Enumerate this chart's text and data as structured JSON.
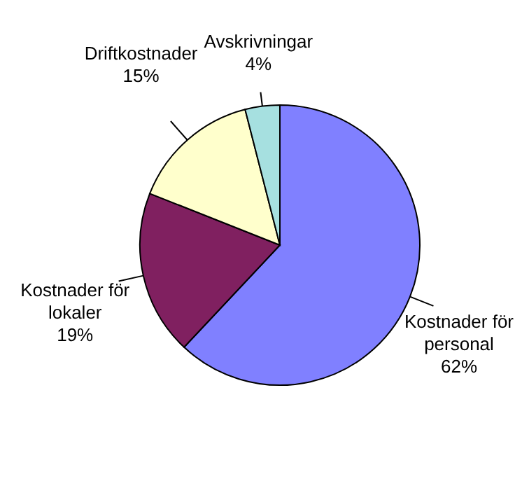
{
  "chart_data": {
    "type": "pie",
    "categories": [
      "Kostnader för personal",
      "Kostnader för lokaler",
      "Driftkostnader",
      "Avskrivningar"
    ],
    "values": [
      62,
      19,
      15,
      4
    ],
    "value_labels": [
      "62%",
      "19%",
      "15%",
      "4%"
    ],
    "colors": [
      "#8080ff",
      "#802060",
      "#ffffcc",
      "#a6e0e0"
    ]
  }
}
